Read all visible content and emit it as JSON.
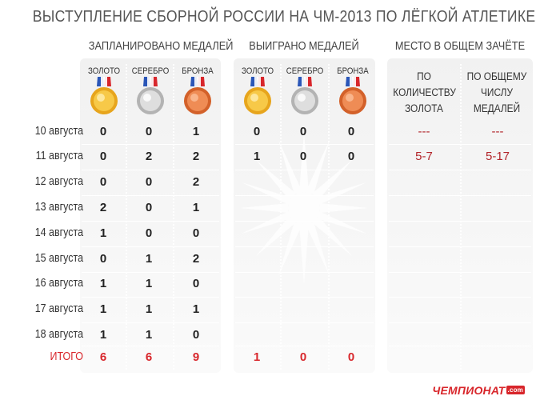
{
  "title": "ВЫСТУПЛЕНИЕ СБОРНОЙ РОССИИ НА ЧМ-2013 ПО ЛЁГКОЙ АТЛЕТИКЕ",
  "groups": {
    "planned": "ЗАПЛАНИРОВАНО МЕДАЛЕЙ",
    "won": "ВЫИГРАНО МЕДАЛЕЙ",
    "place": "МЕСТО В ОБЩЕМ ЗАЧЁТЕ"
  },
  "medals": {
    "gold": "ЗОЛОТО",
    "silver": "СЕРЕБРО",
    "bronze": "БРОНЗА"
  },
  "place_columns": {
    "by_gold": [
      "ПО",
      "КОЛИЧЕСТВУ",
      "ЗОЛОТА"
    ],
    "by_total": [
      "ПО ОБЩЕМУ",
      "ЧИСЛУ",
      "МЕДАЛЕЙ"
    ]
  },
  "colors": {
    "gold": "#f2b62a",
    "silver": "#c9c9c9",
    "bronze": "#e8763c",
    "accent_red": "#d8262b"
  },
  "rows": [
    {
      "date": "10 августа",
      "planned": [
        "0",
        "0",
        "1"
      ],
      "won": [
        "0",
        "0",
        "0"
      ],
      "place": [
        "---",
        "---"
      ]
    },
    {
      "date": "11 августа",
      "planned": [
        "0",
        "2",
        "2"
      ],
      "won": [
        "1",
        "0",
        "0"
      ],
      "place": [
        "5-7",
        "5-17"
      ]
    },
    {
      "date": "12 августа",
      "planned": [
        "0",
        "0",
        "2"
      ],
      "won": [
        "",
        "",
        ""
      ],
      "place": [
        "",
        ""
      ]
    },
    {
      "date": "13 августа",
      "planned": [
        "2",
        "0",
        "1"
      ],
      "won": [
        "",
        "",
        ""
      ],
      "place": [
        "",
        ""
      ]
    },
    {
      "date": "14 августа",
      "planned": [
        "1",
        "0",
        "0"
      ],
      "won": [
        "",
        "",
        ""
      ],
      "place": [
        "",
        ""
      ]
    },
    {
      "date": "15 августа",
      "planned": [
        "0",
        "1",
        "2"
      ],
      "won": [
        "",
        "",
        ""
      ],
      "place": [
        "",
        ""
      ]
    },
    {
      "date": "16 августа",
      "planned": [
        "1",
        "1",
        "0"
      ],
      "won": [
        "",
        "",
        ""
      ],
      "place": [
        "",
        ""
      ]
    },
    {
      "date": "17 августа",
      "planned": [
        "1",
        "1",
        "1"
      ],
      "won": [
        "",
        "",
        ""
      ],
      "place": [
        "",
        ""
      ]
    },
    {
      "date": "18 августа",
      "planned": [
        "1",
        "1",
        "0"
      ],
      "won": [
        "",
        "",
        ""
      ],
      "place": [
        "",
        ""
      ]
    }
  ],
  "total": {
    "label": "ИТОГО",
    "planned": [
      "6",
      "6",
      "9"
    ],
    "won": [
      "1",
      "0",
      "0"
    ]
  },
  "logo": {
    "text": "ЧЕМПИОНАТ",
    "suffix": ".com"
  }
}
